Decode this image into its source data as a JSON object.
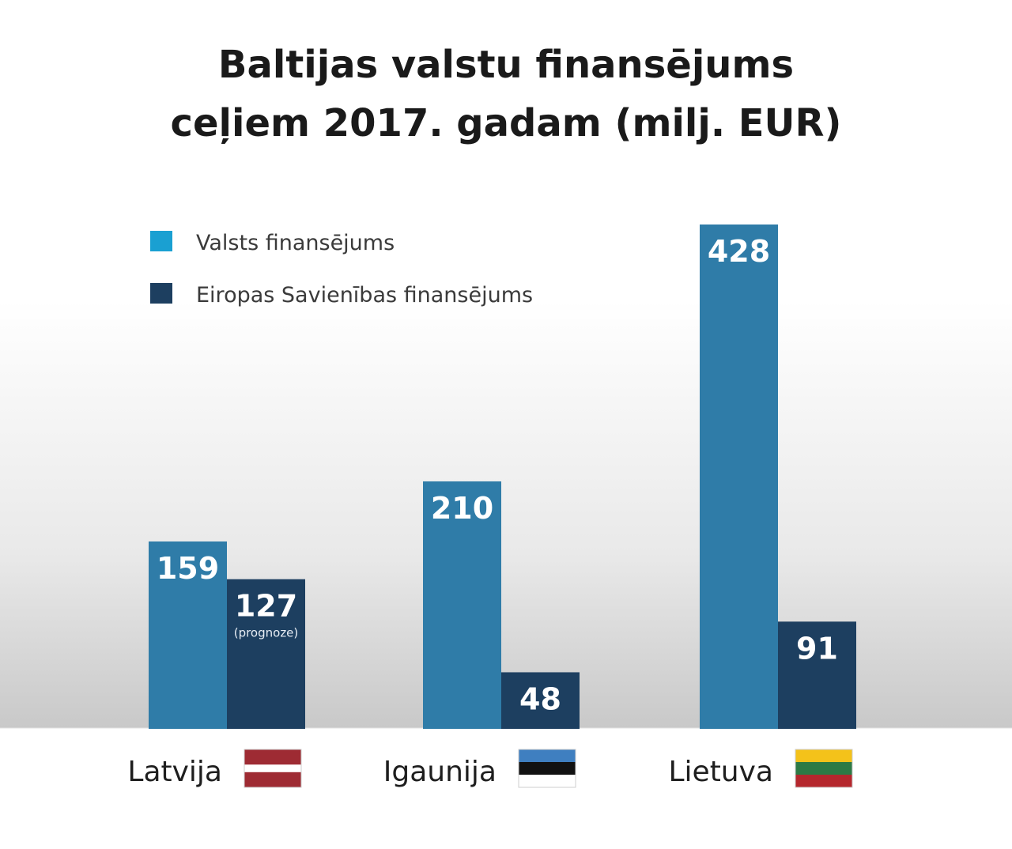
{
  "chart_data": {
    "type": "bar",
    "title_lines": [
      "Baltijas valstu finansējums",
      "ceļiem 2017. gadam (milj. EUR)"
    ],
    "categories": [
      "Latvija",
      "Igaunija",
      "Lietuva"
    ],
    "series": [
      {
        "name": "Valsts finansējums",
        "values": [
          159,
          210,
          428
        ],
        "color": "#2f7ca8"
      },
      {
        "name": "Eiropas Savienības finansējums",
        "values": [
          127,
          48,
          91
        ],
        "color": "#1d3f60"
      }
    ],
    "notes": [
      {
        "series": 1,
        "category": 0,
        "text": "(prognoze)"
      }
    ],
    "legend_position": "top-left",
    "grid": false,
    "legend_colors": [
      "#1aa0d2",
      "#1d3f60"
    ],
    "flags": [
      {
        "country": "Latvija",
        "stripes": [
          "#9e2b33",
          "#ffffff",
          "#9e2b33"
        ],
        "ratios": [
          2,
          1,
          2
        ]
      },
      {
        "country": "Igaunija",
        "stripes": [
          "#3f7fc0",
          "#111111",
          "#ffffff"
        ],
        "ratios": [
          1,
          1,
          1
        ]
      },
      {
        "country": "Lietuva",
        "stripes": [
          "#f4c21a",
          "#2d7a45",
          "#b5272d"
        ],
        "ratios": [
          1,
          1,
          1
        ]
      }
    ]
  }
}
